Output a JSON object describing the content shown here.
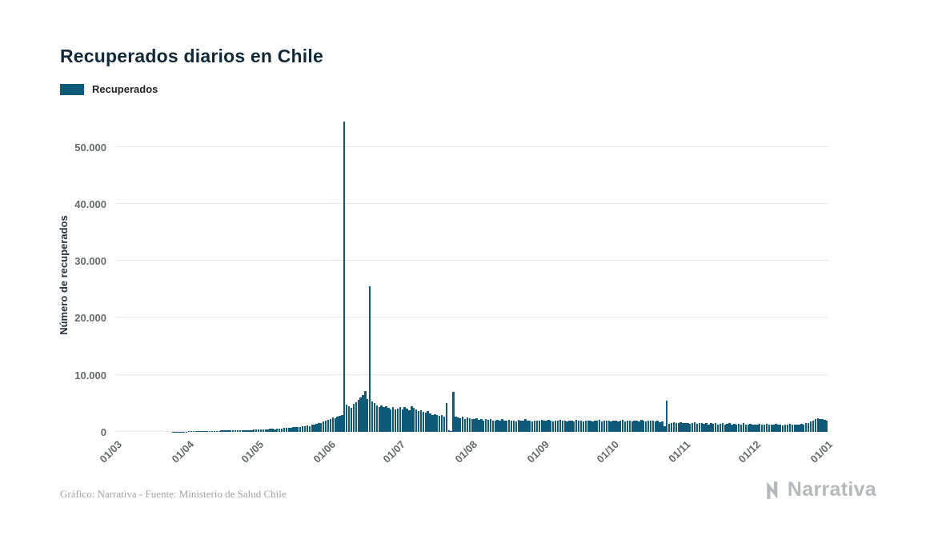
{
  "title": "Recuperados diarios en Chile",
  "legend": {
    "label": "Recuperados",
    "color": "#0e5a78"
  },
  "footer": {
    "caption": "Gráfico: Narrativa - Fuente: Ministerio de Salud Chile",
    "logo_text": "Narrativa"
  },
  "chart_data": {
    "type": "bar",
    "title": "Recuperados diarios en Chile",
    "xlabel": "",
    "ylabel": "Número de recuperados",
    "x_unit": "day",
    "x_start_label": "01/03",
    "tick_labels": [
      "01/03",
      "01/04",
      "01/05",
      "01/06",
      "01/07",
      "01/08",
      "01/09",
      "01/10",
      "01/11",
      "01/12",
      "01/01"
    ],
    "tick_positions": [
      0,
      31,
      61,
      92,
      122,
      153,
      184,
      214,
      245,
      275,
      306
    ],
    "y_ticks": [
      0,
      10000,
      20000,
      30000,
      40000,
      50000
    ],
    "y_tick_labels": [
      "0",
      "10.000",
      "20.000",
      "30.000",
      "40.000",
      "50.000"
    ],
    "ylim": [
      0,
      55000
    ],
    "grid": true,
    "legend_position": "top-left",
    "bar_color": "#0e5a78",
    "values": [
      0,
      0,
      0,
      0,
      0,
      0,
      0,
      0,
      0,
      0,
      0,
      0,
      0,
      0,
      0,
      0,
      0,
      0,
      0,
      0,
      0,
      0,
      0,
      0,
      10,
      15,
      20,
      30,
      40,
      50,
      60,
      80,
      90,
      100,
      110,
      120,
      130,
      140,
      150,
      160,
      170,
      180,
      190,
      200,
      210,
      220,
      230,
      240,
      250,
      260,
      270,
      280,
      290,
      300,
      310,
      320,
      330,
      340,
      350,
      360,
      380,
      400,
      420,
      450,
      430,
      480,
      500,
      520,
      480,
      550,
      600,
      580,
      650,
      700,
      680,
      750,
      800,
      780,
      850,
      900,
      950,
      1000,
      1100,
      1050,
      1200,
      1300,
      1400,
      1500,
      1600,
      1800,
      2000,
      2100,
      2300,
      2500,
      2400,
      2600,
      2800,
      3000,
      54500,
      4800,
      4500,
      4200,
      4900,
      5200,
      5600,
      6000,
      6500,
      7200,
      5800,
      25600,
      5300,
      5000,
      4700,
      4400,
      4600,
      4300,
      4500,
      4200,
      4000,
      4300,
      3900,
      4100,
      4300,
      4000,
      4400,
      4100,
      3800,
      4500,
      4200,
      3900,
      3600,
      3800,
      3500,
      3300,
      3600,
      3200,
      3000,
      3100,
      2900,
      2800,
      3000,
      2700,
      5000,
      300,
      200,
      7000,
      2600,
      2500,
      2400,
      2600,
      2300,
      2500,
      2400,
      2300,
      2200,
      2400,
      2100,
      2300,
      2000,
      2200,
      2100,
      2300,
      2000,
      1900,
      2100,
      2000,
      2200,
      1900,
      2000,
      2100,
      1900,
      2000,
      1800,
      2100,
      1900,
      2000,
      2200,
      1900,
      2000,
      1800,
      1900,
      2000,
      1900,
      2100,
      2000,
      1900,
      2100,
      2000,
      1800,
      2000,
      1900,
      2100,
      1900,
      2000,
      1800,
      1900,
      2000,
      1800,
      2100,
      1900,
      2000,
      1800,
      1900,
      2000,
      1900,
      1800,
      2000,
      1900,
      2100,
      1800,
      1900,
      2000,
      1900,
      1800,
      1900,
      2000,
      1800,
      1900,
      2100,
      1800,
      2000,
      1900,
      1800,
      2000,
      1900,
      1800,
      2100,
      1900,
      1800,
      2000,
      1900,
      2000,
      1800,
      1900,
      1700,
      1800,
      1000,
      5500,
      1400,
      1600,
      1700,
      1500,
      1600,
      1700,
      1600,
      1500,
      1600,
      1400,
      1500,
      1700,
      1400,
      1500,
      1600,
      1400,
      1500,
      1300,
      1500,
      1400,
      1600,
      1300,
      1400,
      1500,
      1300,
      1400,
      1500,
      1300,
      1400,
      1200,
      1400,
      1300,
      1500,
      1200,
      1300,
      1400,
      1300,
      1300,
      1200,
      1400,
      1300,
      1200,
      1400,
      1300,
      1200,
      1300,
      1400,
      1200,
      1300,
      1100,
      1300,
      1200,
      1400,
      1300,
      1200,
      1300,
      1200,
      1400,
      1300,
      1500,
      1600,
      1800,
      2000,
      2200,
      2400,
      2300,
      2200,
      2100,
      1900
    ]
  }
}
